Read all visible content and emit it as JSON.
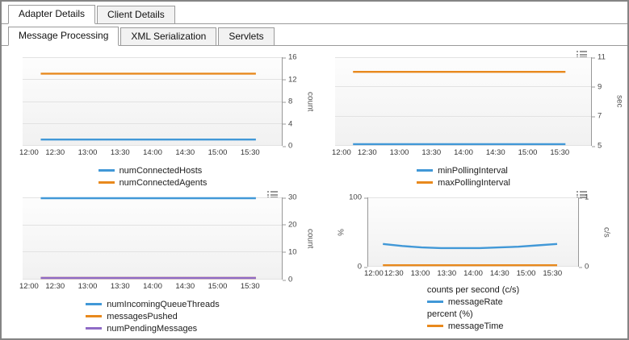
{
  "tabs": {
    "primary": [
      {
        "label": "Adapter Details",
        "active": true
      },
      {
        "label": "Client Details",
        "active": false
      }
    ],
    "secondary": [
      {
        "label": "Message Processing",
        "active": true
      },
      {
        "label": "XML Serialization",
        "active": false
      },
      {
        "label": "Servlets",
        "active": false
      }
    ]
  },
  "colors": {
    "blue": "#4198d7",
    "orange": "#e8891d",
    "purple": "#8f6bc6"
  },
  "chart_data": [
    {
      "type": "line",
      "name": "connected-hosts-agents",
      "x_ticks": [
        "12:00",
        "12:30",
        "13:00",
        "13:30",
        "14:00",
        "14:30",
        "15:00",
        "15:30"
      ],
      "right_axis": {
        "label": "count",
        "lim": [
          0,
          16
        ],
        "ticks": [
          0,
          4,
          8,
          12,
          16
        ]
      },
      "menu_icon": false,
      "series": [
        {
          "name": "numConnectedHosts",
          "color": "#4198d7",
          "axis": "right",
          "x_range": [
            0.07,
            0.9
          ],
          "values": [
            1,
            1
          ]
        },
        {
          "name": "numConnectedAgents",
          "color": "#e8891d",
          "axis": "right",
          "x_range": [
            0.07,
            0.9
          ],
          "values": [
            13,
            13
          ]
        }
      ],
      "legend": [
        {
          "label": "numConnectedHosts",
          "color": "#4198d7"
        },
        {
          "label": "numConnectedAgents",
          "color": "#e8891d"
        }
      ]
    },
    {
      "type": "line",
      "name": "polling-interval",
      "x_ticks": [
        "12:00",
        "12:30",
        "13:00",
        "13:30",
        "14:00",
        "14:30",
        "15:00",
        "15:30"
      ],
      "right_axis": {
        "label": "sec",
        "lim": [
          5,
          11
        ],
        "ticks": [
          5,
          7,
          9,
          11
        ]
      },
      "menu_icon": true,
      "series": [
        {
          "name": "minPollingInterval",
          "color": "#4198d7",
          "axis": "right",
          "x_range": [
            0.07,
            0.9
          ],
          "values": [
            5,
            5
          ]
        },
        {
          "name": "maxPollingInterval",
          "color": "#e8891d",
          "axis": "right",
          "x_range": [
            0.07,
            0.9
          ],
          "values": [
            10,
            10
          ]
        }
      ],
      "legend": [
        {
          "label": "minPollingInterval",
          "color": "#4198d7"
        },
        {
          "label": "maxPollingInterval",
          "color": "#e8891d"
        }
      ]
    },
    {
      "type": "line",
      "name": "queue-threads-messages",
      "x_ticks": [
        "12:00",
        "12:30",
        "13:00",
        "13:30",
        "14:00",
        "14:30",
        "15:00",
        "15:30"
      ],
      "right_axis": {
        "label": "count",
        "lim": [
          0,
          30
        ],
        "ticks": [
          0,
          10,
          20,
          30
        ]
      },
      "menu_icon": true,
      "series": [
        {
          "name": "numIncomingQueueThreads",
          "color": "#4198d7",
          "axis": "right",
          "x_range": [
            0.07,
            0.9
          ],
          "values": [
            30,
            30
          ]
        },
        {
          "name": "messagesPushed",
          "color": "#e8891d",
          "axis": "right",
          "x_range": [
            0.07,
            0.9
          ],
          "values": [
            0,
            0
          ]
        },
        {
          "name": "numPendingMessages",
          "color": "#8f6bc6",
          "axis": "right",
          "x_range": [
            0.07,
            0.9
          ],
          "values": [
            0,
            0
          ]
        }
      ],
      "legend": [
        {
          "label": "numIncomingQueueThreads",
          "color": "#4198d7"
        },
        {
          "label": "messagesPushed",
          "color": "#e8891d"
        },
        {
          "label": "numPendingMessages",
          "color": "#8f6bc6"
        }
      ]
    },
    {
      "type": "line",
      "name": "message-rate-time",
      "x_ticks": [
        "12:00",
        "12:30",
        "13:00",
        "13:30",
        "14:00",
        "14:30",
        "15:00",
        "15:30"
      ],
      "left_axis": {
        "label": "%",
        "lim": [
          0,
          100
        ],
        "ticks": [
          0,
          100
        ]
      },
      "right_axis": {
        "label": "c/s",
        "lim": [
          0,
          1
        ],
        "ticks": [
          0,
          1
        ]
      },
      "menu_icon": true,
      "series": [
        {
          "name": "messageRate",
          "color": "#4198d7",
          "axis": "right",
          "x_range": [
            0.07,
            0.9
          ],
          "values": [
            0.32,
            0.29,
            0.27,
            0.26,
            0.26,
            0.26,
            0.27,
            0.28,
            0.3,
            0.32
          ]
        },
        {
          "name": "messageTime",
          "color": "#e8891d",
          "axis": "left",
          "x_range": [
            0.07,
            0.9
          ],
          "values": [
            0,
            0
          ]
        }
      ],
      "legend": [
        {
          "label": "counts per second (c/s)",
          "color": null
        },
        {
          "label": "messageRate",
          "color": "#4198d7"
        },
        {
          "label": "percent (%)",
          "color": null
        },
        {
          "label": "messageTime",
          "color": "#e8891d"
        }
      ]
    }
  ]
}
